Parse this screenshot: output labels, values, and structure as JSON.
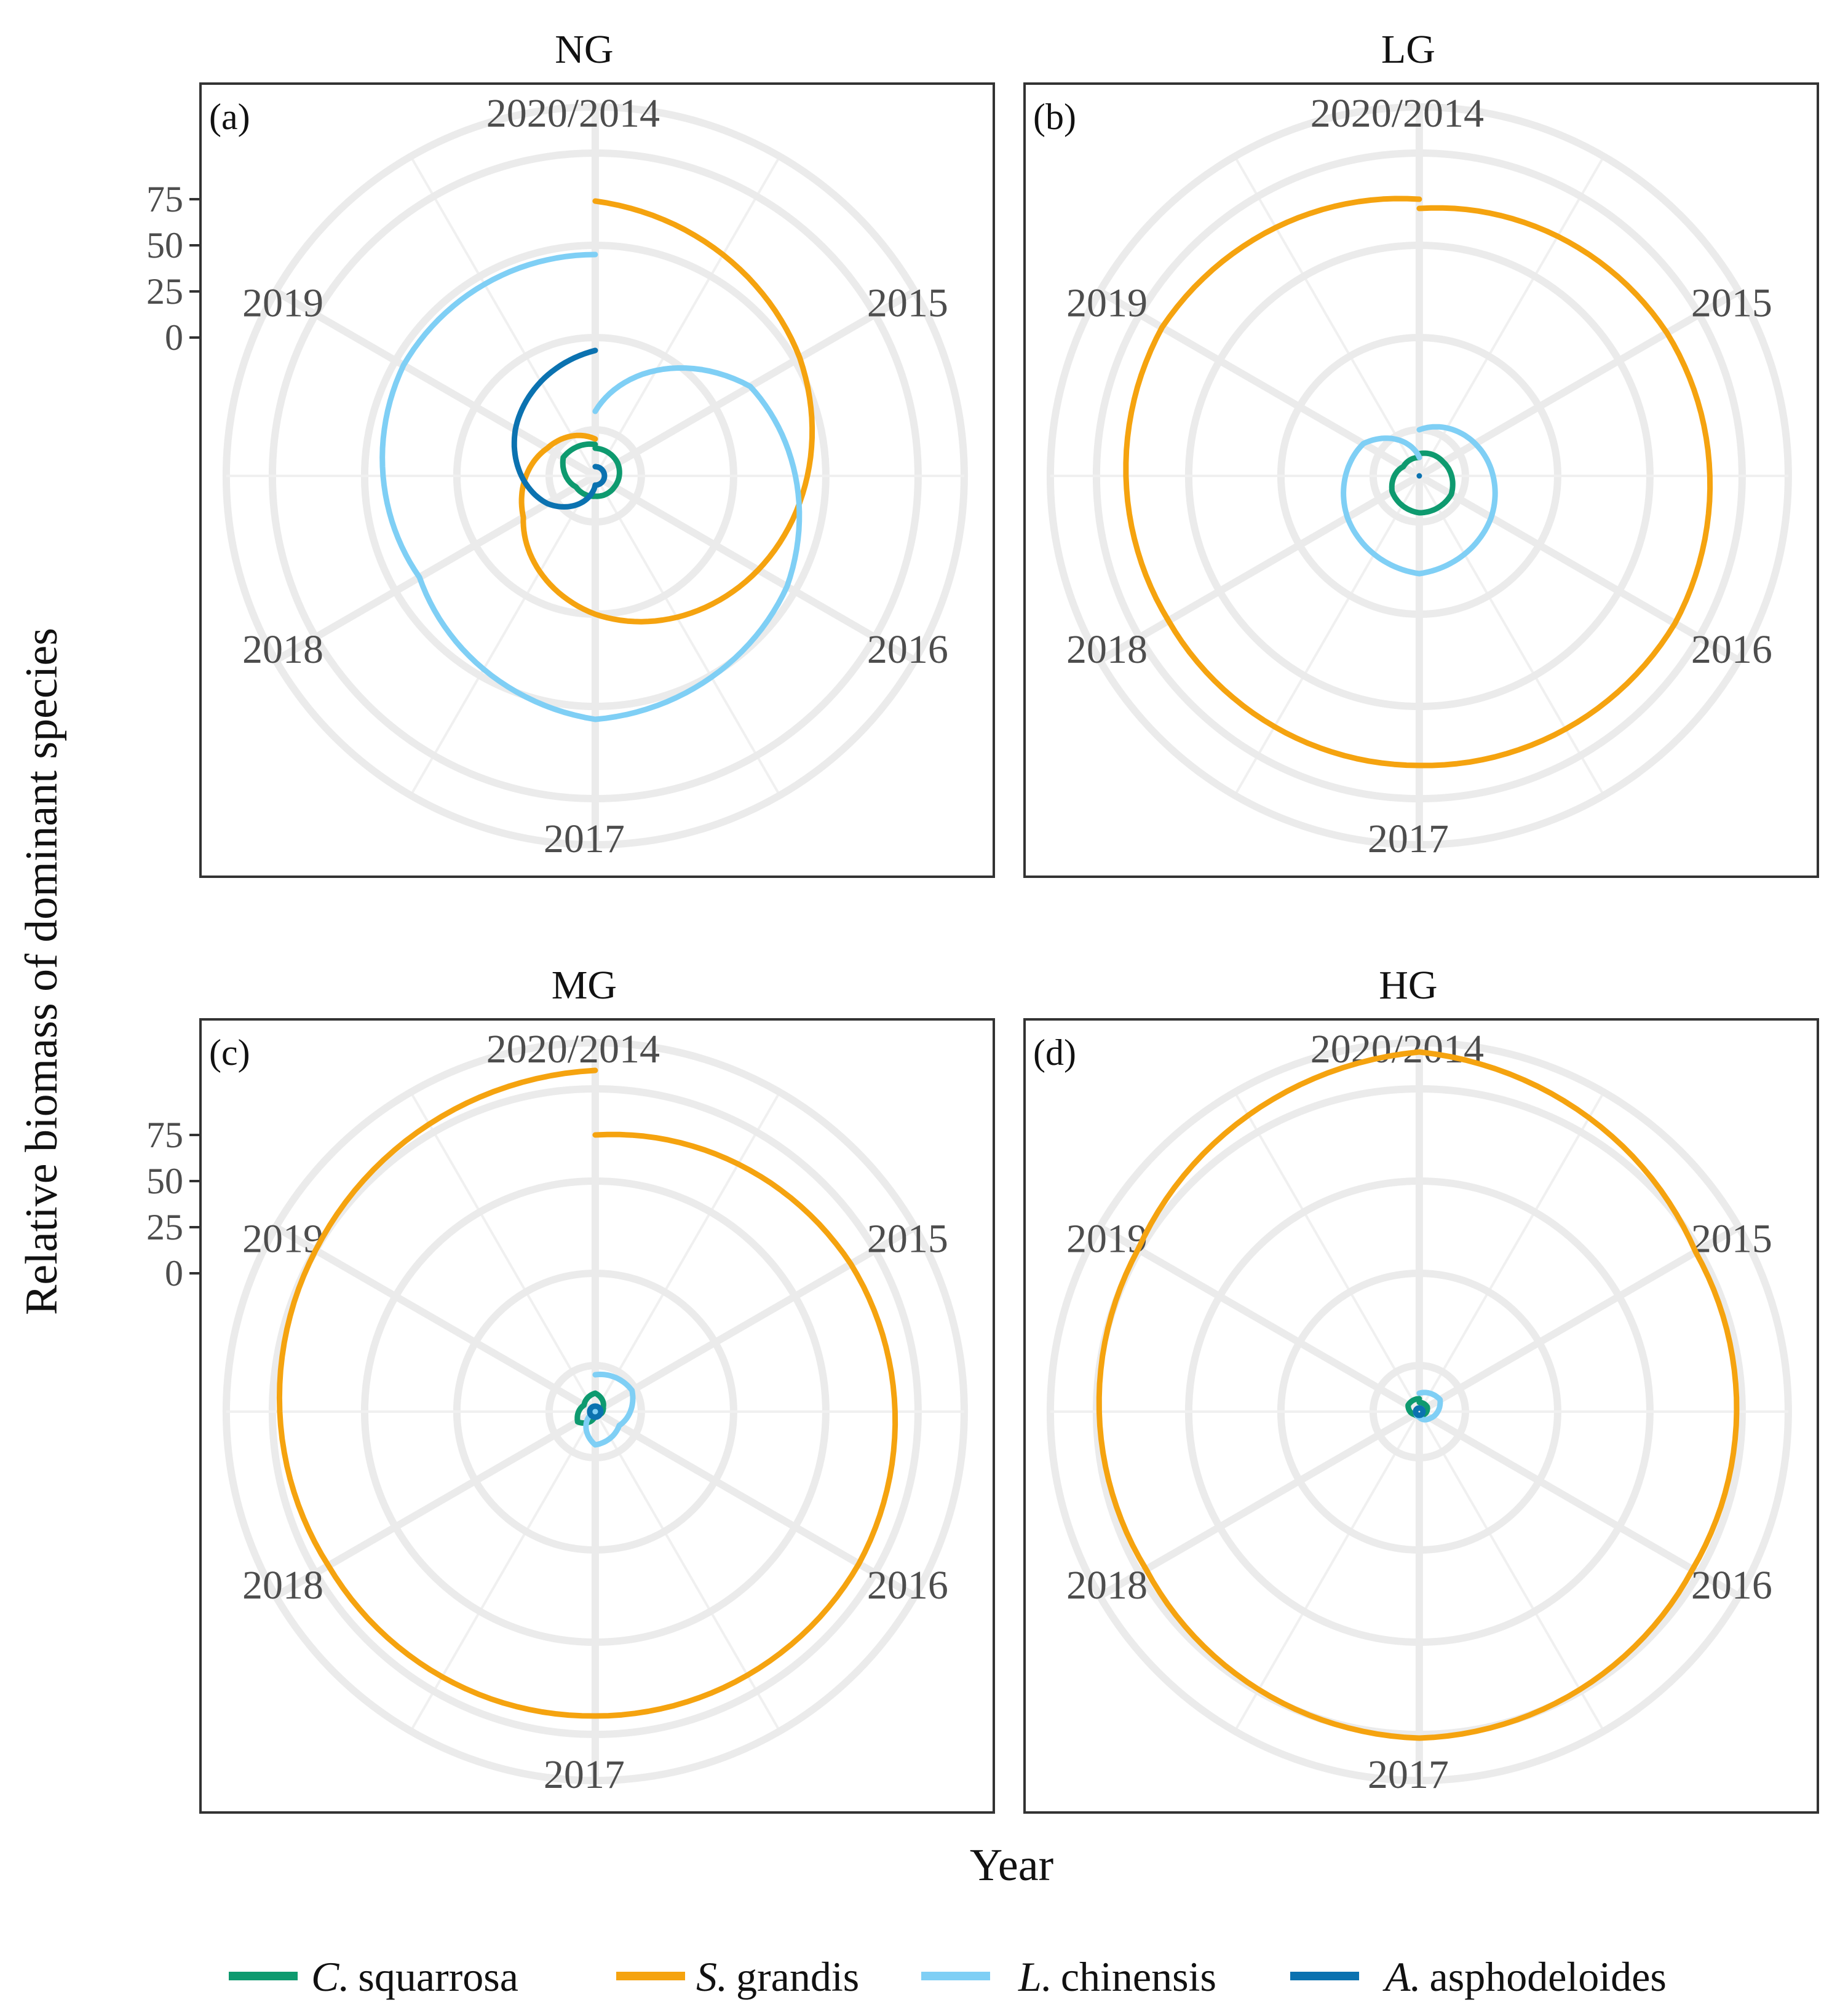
{
  "figure": {
    "y_axis_title": "Relative biomass of dominant species",
    "x_axis_title": "Year"
  },
  "legend": {
    "items": [
      {
        "genus": "C.",
        "species": "squarrosa",
        "color": "#0e9a6f"
      },
      {
        "genus": "S.",
        "species": "grandis",
        "color": "#f5a30f"
      },
      {
        "genus": "L.",
        "species": "chinensis",
        "color": "#7fcff5"
      },
      {
        "genus": "A.",
        "species": "asphodeloides",
        "color": "#0b72b0"
      }
    ]
  },
  "chart_data": [
    {
      "type": "line",
      "coordinate_system": "polar",
      "tag": "(a)",
      "title": "NG",
      "angle_labels": [
        "2020/2014",
        "2015",
        "2016",
        "2017",
        "2018",
        "2019"
      ],
      "x": [
        2014,
        2015,
        2016,
        2017,
        2018,
        2019,
        2020
      ],
      "y_ticks": [
        "75",
        "50",
        "25",
        "0"
      ],
      "ylim": [
        -75,
        125
      ],
      "series": [
        {
          "name": "C. squarrosa",
          "values": [
            -60,
            -61,
            -63,
            -64,
            -63,
            -55,
            -58
          ]
        },
        {
          "name": "S. grandis",
          "values": [
            74,
            53,
            27,
            0,
            -30,
            -45,
            -55
          ]
        },
        {
          "name": "L. chinensis",
          "values": [
            -40,
            22,
            45,
            57,
            35,
            45,
            45
          ]
        },
        {
          "name": "A. asphodeloides",
          "values": [
            -70,
            -70,
            -70,
            -70,
            -45,
            -25,
            -7
          ]
        }
      ]
    },
    {
      "type": "line",
      "coordinate_system": "polar",
      "tag": "(b)",
      "title": "LG",
      "angle_labels": [
        "2020/2014",
        "2015",
        "2016",
        "2017",
        "2018",
        "2019"
      ],
      "x": [
        2014,
        2015,
        2016,
        2017,
        2018,
        2019,
        2020
      ],
      "y_ticks": [
        "75",
        "50",
        "25",
        "0"
      ],
      "ylim": [
        -75,
        125
      ],
      "series": [
        {
          "name": "C. squarrosa",
          "values": [
            -63,
            -60,
            -55,
            -55,
            -58,
            -65,
            -65
          ]
        },
        {
          "name": "S. grandis",
          "values": [
            70,
            80,
            85,
            82,
            82,
            86,
            75
          ]
        },
        {
          "name": "L. chinensis",
          "values": [
            -50,
            -40,
            -30,
            -22,
            -30,
            -40,
            -65
          ]
        },
        {
          "name": "A. asphodeloides",
          "values": [
            -75,
            -75,
            -75,
            -75,
            -75,
            -75,
            -75
          ]
        }
      ]
    },
    {
      "type": "line",
      "coordinate_system": "polar",
      "tag": "(c)",
      "title": "MG",
      "angle_labels": [
        "2020/2014",
        "2015",
        "2016",
        "2017",
        "2018",
        "2019"
      ],
      "x": [
        2014,
        2015,
        2016,
        2017,
        2018,
        2019,
        2020
      ],
      "y_ticks": [
        "75",
        "50",
        "25",
        "0"
      ],
      "ylim": [
        -75,
        125
      ],
      "series": [
        {
          "name": "C. squarrosa",
          "values": [
            -65,
            -70,
            -72,
            -73,
            -64,
            -68,
            -65
          ]
        },
        {
          "name": "S. grandis",
          "values": [
            75,
            85,
            90,
            90,
            92,
            100,
            110
          ]
        },
        {
          "name": "L. chinensis",
          "values": [
            -55,
            -52,
            -60,
            -57,
            -73,
            -75,
            -75
          ]
        },
        {
          "name": "A. asphodeloides",
          "values": [
            -72,
            -72,
            -72,
            -72,
            -72,
            -72,
            -72
          ]
        }
      ]
    },
    {
      "type": "line",
      "coordinate_system": "polar",
      "tag": "(d)",
      "title": "HG",
      "angle_labels": [
        "2020/2014",
        "2015",
        "2016",
        "2017",
        "2018",
        "2019"
      ],
      "x": [
        2014,
        2015,
        2016,
        2017,
        2018,
        2019,
        2020
      ],
      "y_ticks": [
        "75",
        "50",
        "25",
        "0"
      ],
      "ylim": [
        -75,
        125
      ],
      "series": [
        {
          "name": "C. squarrosa",
          "values": [
            -70,
            -70,
            -72,
            -73,
            -72,
            -68,
            -68
          ]
        },
        {
          "name": "S. grandis",
          "values": [
            120,
            98,
            96,
            102,
            96,
            101,
            120
          ]
        },
        {
          "name": "L. chinensis",
          "values": [
            -65,
            -62,
            -68,
            -72,
            -73,
            -73,
            -73
          ]
        },
        {
          "name": "A. asphodeloides",
          "values": [
            -73,
            -73,
            -73,
            -73,
            -73,
            -73,
            -73
          ]
        }
      ]
    }
  ]
}
